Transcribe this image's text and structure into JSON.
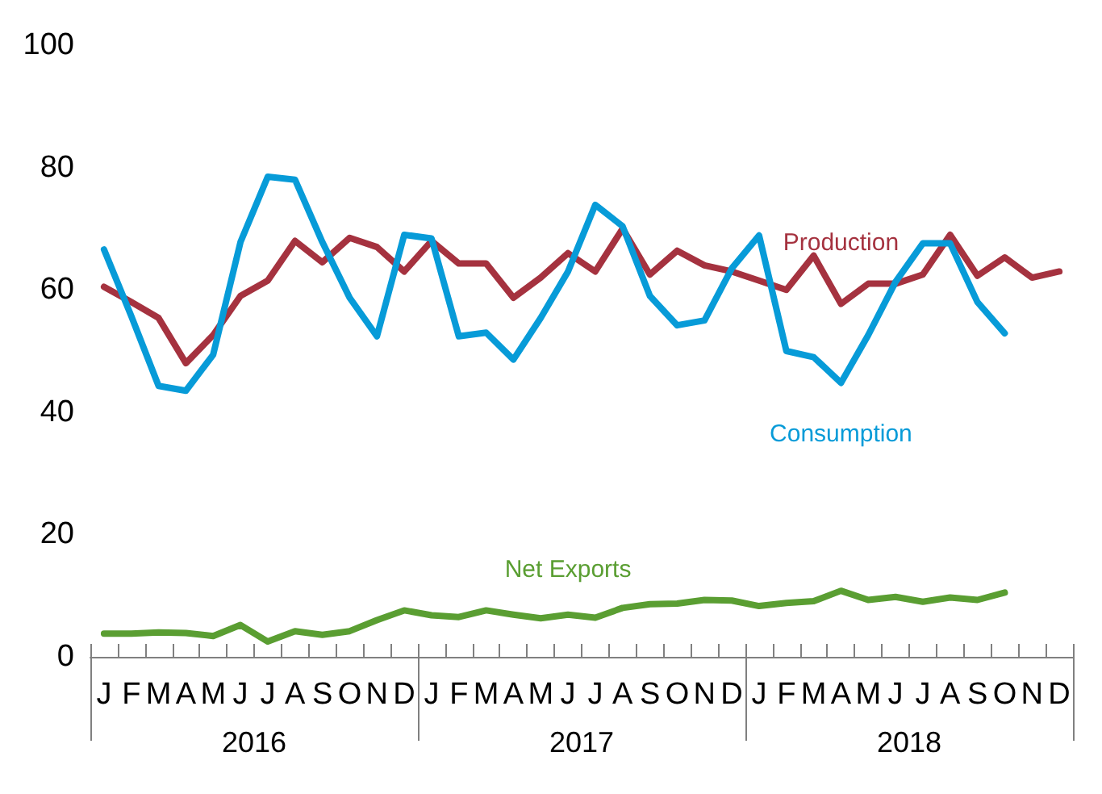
{
  "chart_data": {
    "type": "line",
    "categories": [
      "J",
      "F",
      "M",
      "A",
      "M",
      "J",
      "J",
      "A",
      "S",
      "O",
      "N",
      "D",
      "J",
      "F",
      "M",
      "A",
      "M",
      "J",
      "J",
      "A",
      "S",
      "O",
      "N",
      "D",
      "J",
      "F",
      "M",
      "A",
      "M",
      "J",
      "J",
      "A",
      "S",
      "O",
      "N",
      "D"
    ],
    "series": [
      {
        "name": "Production",
        "color": "#a5323f",
        "values": [
          60.5,
          58,
          55.4,
          48,
          52.6,
          59,
          61.5,
          68,
          64.5,
          68.5,
          67,
          63,
          68,
          64.3,
          64.3,
          58.7,
          62,
          66,
          63,
          70,
          62.5,
          66.4,
          64,
          63,
          61.5,
          60,
          65.6,
          57.7,
          61,
          61,
          62.5,
          69,
          62.3,
          65.3,
          62,
          63
        ]
      },
      {
        "name": "Consumption",
        "color": "#079bd8",
        "values": [
          66.6,
          55.7,
          44.3,
          43.5,
          49.4,
          67.8,
          78.5,
          78,
          67.8,
          58.7,
          52.4,
          69,
          68.4,
          52.4,
          53,
          48.6,
          55.4,
          63,
          73.9,
          70.4,
          59,
          54.2,
          55,
          63.5,
          68.9,
          50,
          49,
          44.8,
          52.6,
          61.3,
          67.6,
          67.6,
          58,
          52.9,
          null,
          null
        ]
      },
      {
        "name": "Net Exports",
        "color": "#5a9e32",
        "values": [
          3.8,
          3.8,
          4,
          3.9,
          3.4,
          5.2,
          2.5,
          4.2,
          3.6,
          4.2,
          6,
          7.6,
          6.8,
          6.5,
          7.6,
          6.9,
          6.3,
          6.9,
          6.4,
          8,
          8.6,
          8.7,
          9.3,
          9.2,
          8.3,
          8.8,
          9.1,
          10.8,
          9.3,
          9.8,
          9,
          9.7,
          9.3,
          10.5,
          null,
          null
        ]
      }
    ],
    "annotations": [
      "2016",
      "2017",
      "2018"
    ],
    "ylim": [
      0,
      100
    ],
    "yticks": [
      0,
      20,
      40,
      60,
      80,
      100
    ],
    "grid": false,
    "legend": false,
    "marker": "none",
    "line_style": "solid"
  }
}
